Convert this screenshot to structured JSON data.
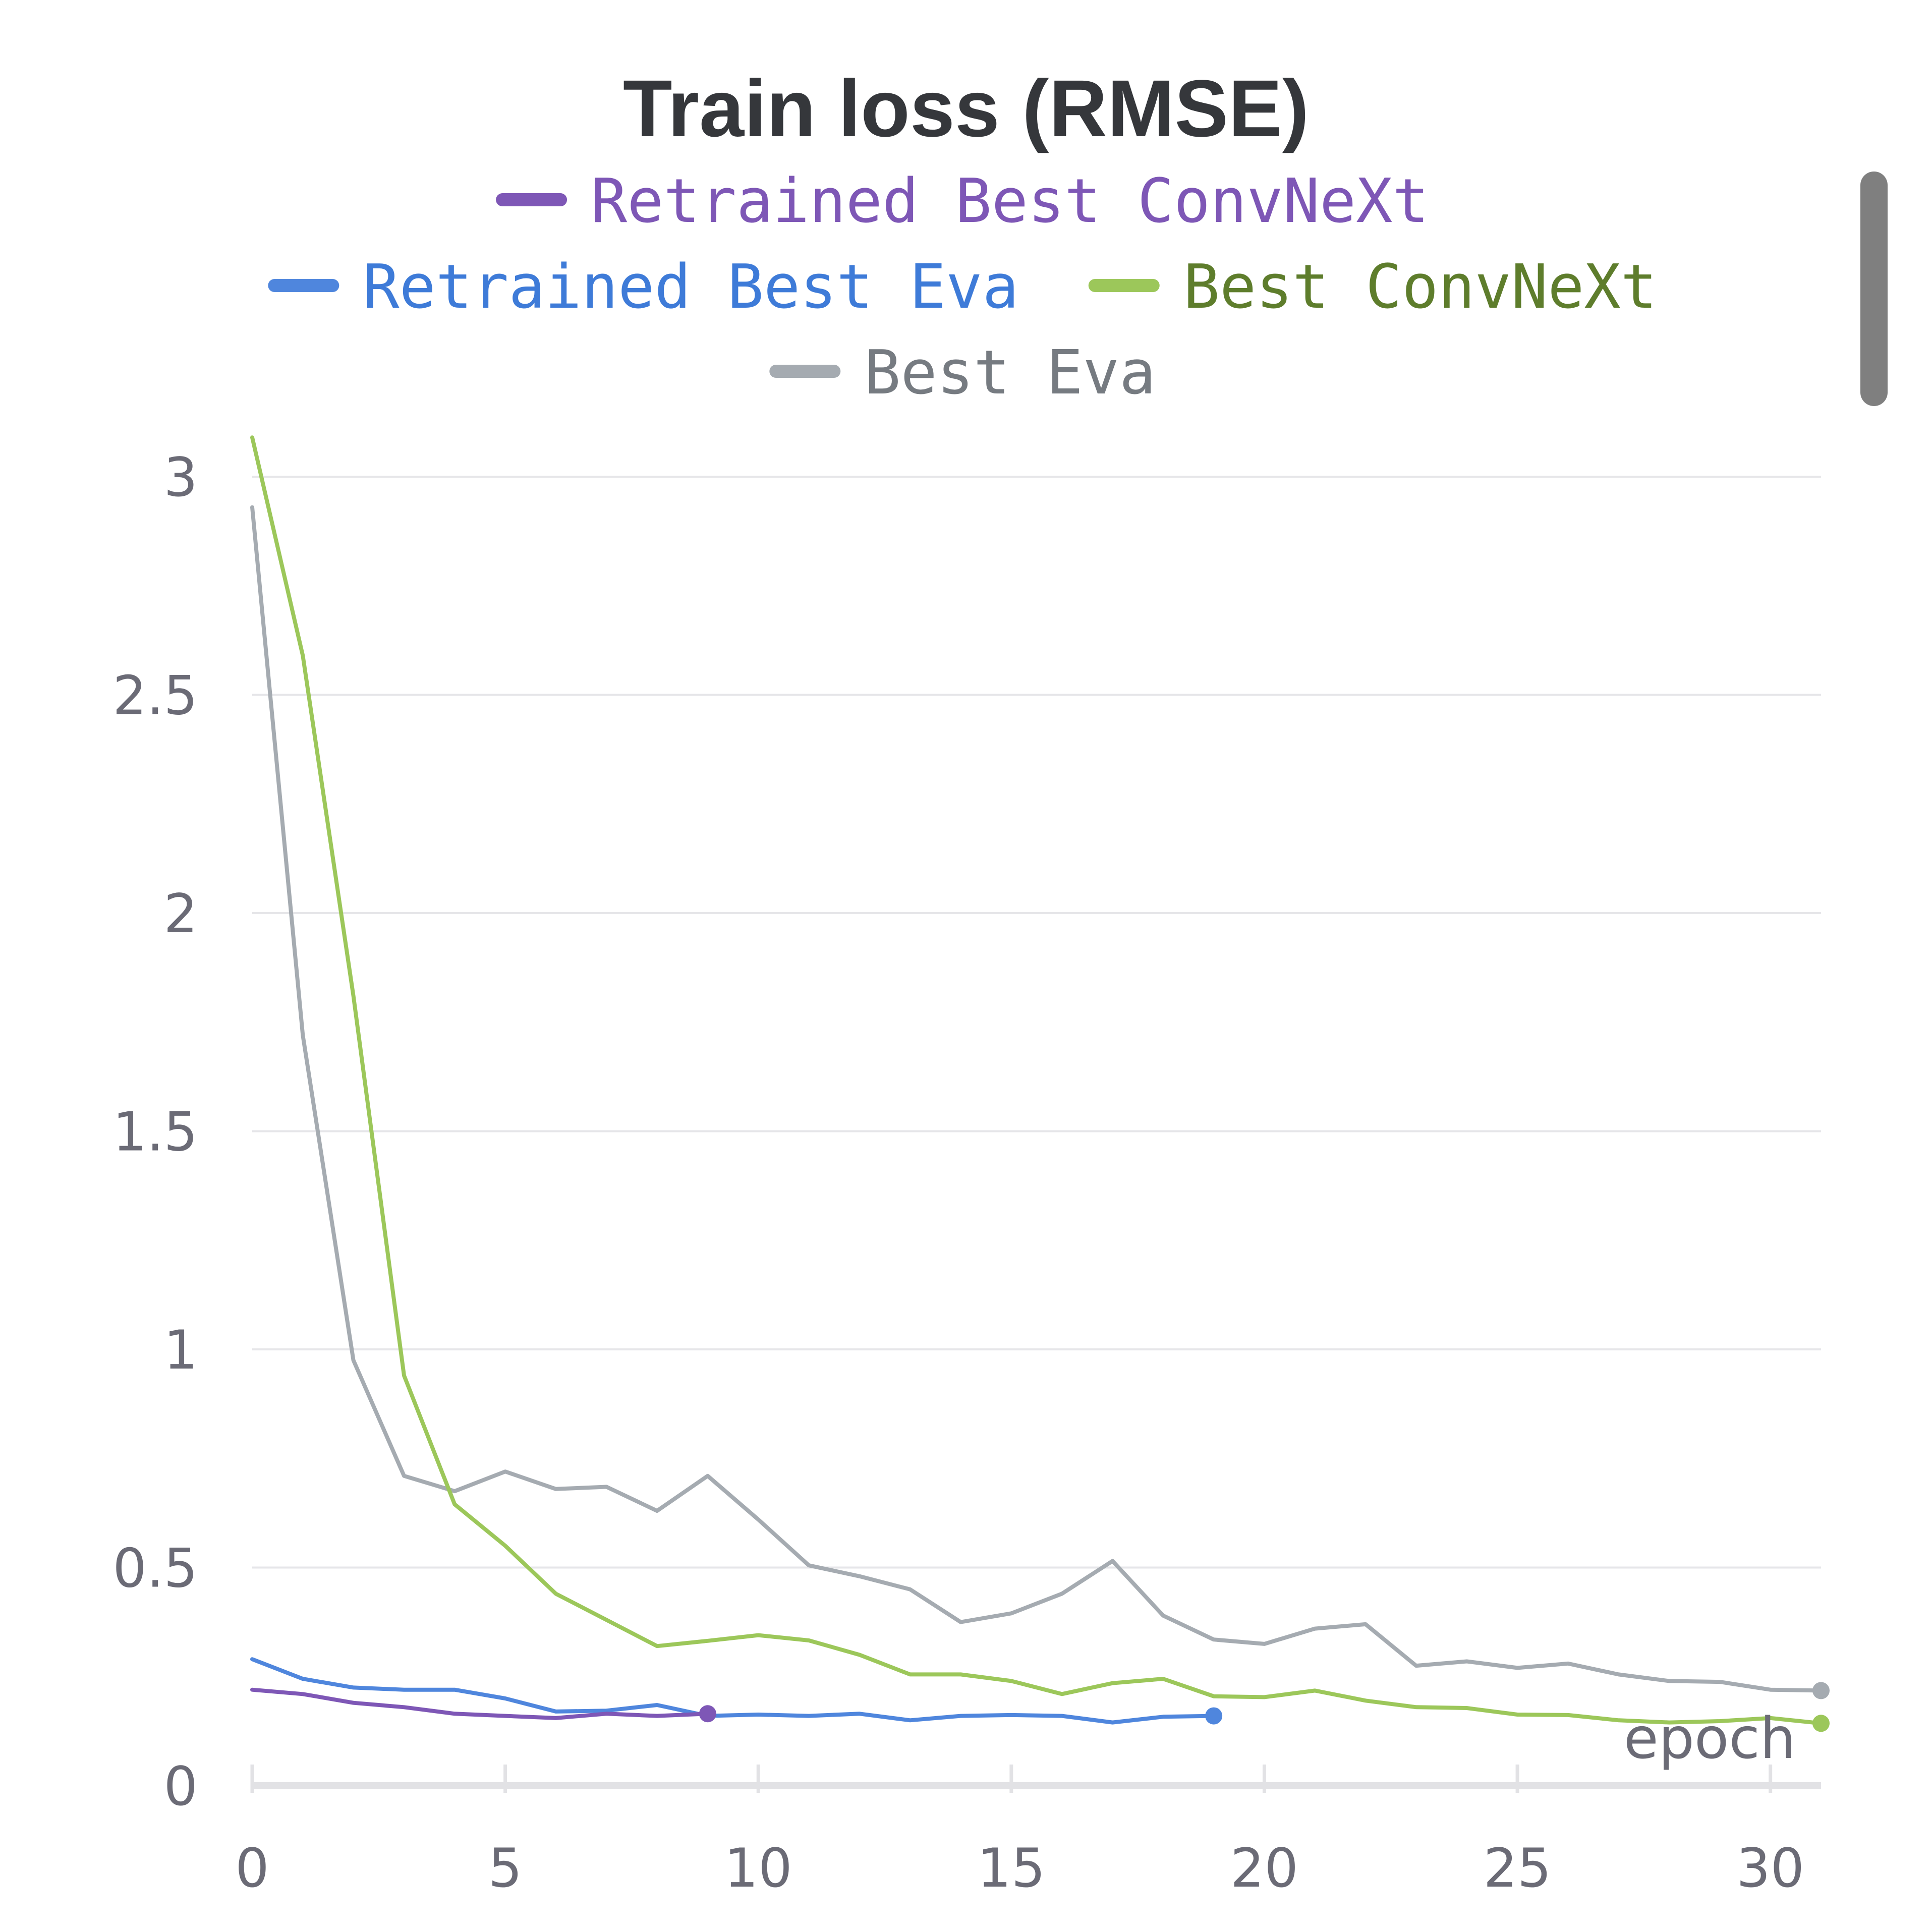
{
  "chart_data": {
    "type": "line",
    "title": "Train loss (RMSE)",
    "xlabel": "epoch",
    "ylabel": "",
    "xlim": [
      0,
      31
    ],
    "ylim": [
      0,
      3
    ],
    "xticks": [
      0,
      5,
      10,
      15,
      20,
      25,
      30
    ],
    "yticks": [
      0,
      0.5,
      1,
      1.5,
      2,
      2.5,
      3
    ],
    "ytick_labels": [
      "0",
      "0.5",
      "1",
      "1.5",
      "2",
      "2.5",
      "3"
    ],
    "grid": true,
    "legend_position": "top",
    "series": [
      {
        "name": "Retrained Best ConvNeXt",
        "color": "#7e57b6",
        "label_color": "#7e57b6",
        "x": [
          0,
          1,
          2,
          3,
          4,
          5,
          6,
          7,
          8,
          9
        ],
        "y": [
          0.22,
          0.21,
          0.19,
          0.18,
          0.165,
          0.16,
          0.155,
          0.165,
          0.16,
          0.165
        ]
      },
      {
        "name": "Retrained Best Eva",
        "color": "#4f86dd",
        "label_color": "#3e7bd8",
        "x": [
          0,
          1,
          2,
          3,
          4,
          5,
          6,
          7,
          8,
          9,
          10,
          11,
          12,
          13,
          14,
          15,
          16,
          17,
          18,
          19
        ],
        "y": [
          0.29,
          0.245,
          0.225,
          0.22,
          0.22,
          0.2,
          0.17,
          0.172,
          0.185,
          0.16,
          0.163,
          0.16,
          0.165,
          0.15,
          0.16,
          0.162,
          0.16,
          0.145,
          0.158,
          0.16
        ]
      },
      {
        "name": "Best ConvNeXt",
        "color": "#9cc75a",
        "label_color": "#5e7d2c",
        "x": [
          0,
          1,
          2,
          3,
          4,
          5,
          6,
          7,
          8,
          9,
          10,
          11,
          12,
          13,
          14,
          15,
          16,
          17,
          18,
          19,
          20,
          21,
          22,
          23,
          24,
          25,
          26,
          27,
          28,
          29,
          30,
          31
        ],
        "y": [
          3.09,
          2.59,
          1.81,
          0.94,
          0.645,
          0.55,
          0.44,
          0.38,
          0.32,
          0.332,
          0.345,
          0.333,
          0.3,
          0.255,
          0.255,
          0.24,
          0.21,
          0.235,
          0.245,
          0.205,
          0.203,
          0.218,
          0.195,
          0.18,
          0.178,
          0.163,
          0.162,
          0.15,
          0.145,
          0.148,
          0.155,
          0.143
        ]
      },
      {
        "name": "Best Eva",
        "color": "#a5abb1",
        "label_color": "#767b81",
        "x": [
          0,
          1,
          2,
          3,
          4,
          5,
          6,
          7,
          8,
          9,
          10,
          11,
          12,
          13,
          14,
          15,
          16,
          17,
          18,
          19,
          20,
          21,
          22,
          23,
          24,
          25,
          26,
          27,
          28,
          29,
          30,
          31
        ],
        "y": [
          2.93,
          1.72,
          0.975,
          0.71,
          0.675,
          0.72,
          0.68,
          0.685,
          0.63,
          0.71,
          0.61,
          0.505,
          0.48,
          0.45,
          0.375,
          0.395,
          0.44,
          0.515,
          0.39,
          0.335,
          0.325,
          0.36,
          0.37,
          0.275,
          0.285,
          0.27,
          0.28,
          0.255,
          0.24,
          0.238,
          0.22,
          0.218
        ]
      }
    ]
  }
}
